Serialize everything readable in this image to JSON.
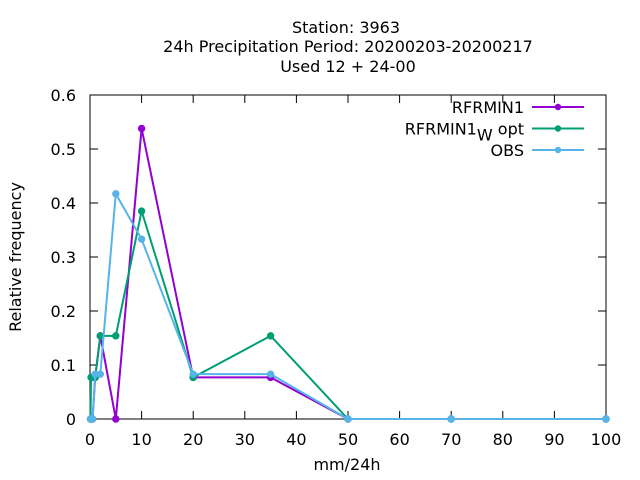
{
  "chart_data": {
    "type": "line",
    "title_lines": [
      "Station:     3963",
      "24h Precipitation  Period: 20200203-20200217",
      "Used  12 + 24-00"
    ],
    "xlabel": "mm/24h",
    "ylabel": "Relative frequency",
    "xlim": [
      0,
      100
    ],
    "ylim": [
      0,
      0.6
    ],
    "xticks": [
      0,
      10,
      20,
      30,
      40,
      50,
      60,
      70,
      80,
      90,
      100
    ],
    "yticks": [
      0,
      0.1,
      0.2,
      0.3,
      0.4,
      0.5,
      0.6
    ],
    "grid": false,
    "legend_position": "top-right",
    "series": [
      {
        "name": "RFRMIN1",
        "legend_main": "RFRMIN1",
        "legend_sub": "",
        "legend_suffix": "",
        "color": "#9400d3",
        "x": [
          0.1,
          0.2,
          0.5,
          1,
          2,
          5,
          10,
          20,
          35,
          50,
          70,
          100
        ],
        "y": [
          0,
          0,
          0,
          0.077,
          0.154,
          0,
          0.538,
          0.077,
          0.077,
          0,
          0,
          0
        ]
      },
      {
        "name": "RFRMIN1_W opt",
        "legend_main": "RFRMIN1",
        "legend_sub": "W",
        "legend_suffix": "opt",
        "color": "#009e73",
        "x": [
          0.1,
          0.2,
          0.5,
          1,
          2,
          5,
          10,
          20,
          35,
          50,
          70,
          100
        ],
        "y": [
          0,
          0.077,
          0.077,
          0.077,
          0.154,
          0.154,
          0.385,
          0.077,
          0.154,
          0,
          0,
          0
        ]
      },
      {
        "name": "OBS",
        "legend_main": "OBS",
        "legend_sub": "",
        "legend_suffix": "",
        "color": "#56b4e9",
        "x": [
          0.1,
          0.2,
          0.5,
          1,
          2,
          5,
          10,
          20,
          35,
          50,
          70,
          100
        ],
        "y": [
          0,
          0,
          0,
          0.083,
          0.083,
          0.417,
          0.333,
          0.083,
          0.083,
          0,
          0,
          0
        ]
      }
    ]
  }
}
